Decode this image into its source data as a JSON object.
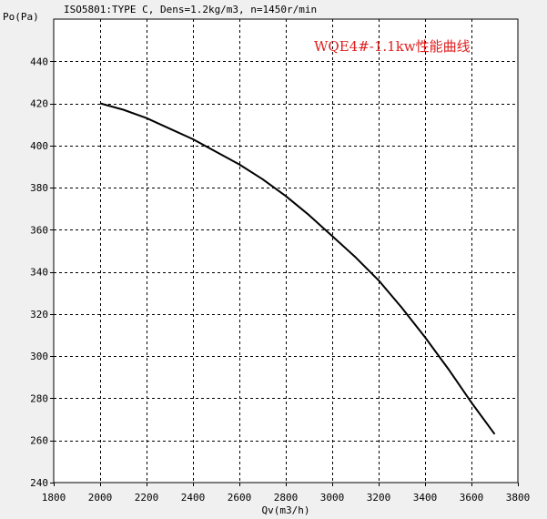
{
  "header": {
    "text": "ISO5801:TYPE C, Dens=1.2kg/m3, n=1450r/min"
  },
  "chart_data": {
    "type": "line",
    "title": "WQE4#-1.1kw性能曲线",
    "xlabel": "Qv(m3/h)",
    "ylabel": "Po(Pa)",
    "xlim": [
      1800,
      3800
    ],
    "ylim": [
      240,
      460
    ],
    "x_ticks": [
      1800,
      2000,
      2200,
      2400,
      2600,
      2800,
      3000,
      3200,
      3400,
      3600,
      3800
    ],
    "y_ticks": [
      240,
      260,
      280,
      300,
      320,
      340,
      360,
      380,
      400,
      420,
      440
    ],
    "grid": true,
    "series": [
      {
        "color": "#000000",
        "x": [
          2000,
          2100,
          2200,
          2300,
          2400,
          2500,
          2600,
          2700,
          2800,
          2900,
          3000,
          3100,
          3200,
          3300,
          3400,
          3500,
          3600,
          3700
        ],
        "y": [
          420,
          417,
          413,
          408,
          403,
          397,
          391,
          384,
          376,
          367,
          357,
          347,
          336,
          323,
          309,
          294,
          278,
          263
        ]
      }
    ]
  }
}
